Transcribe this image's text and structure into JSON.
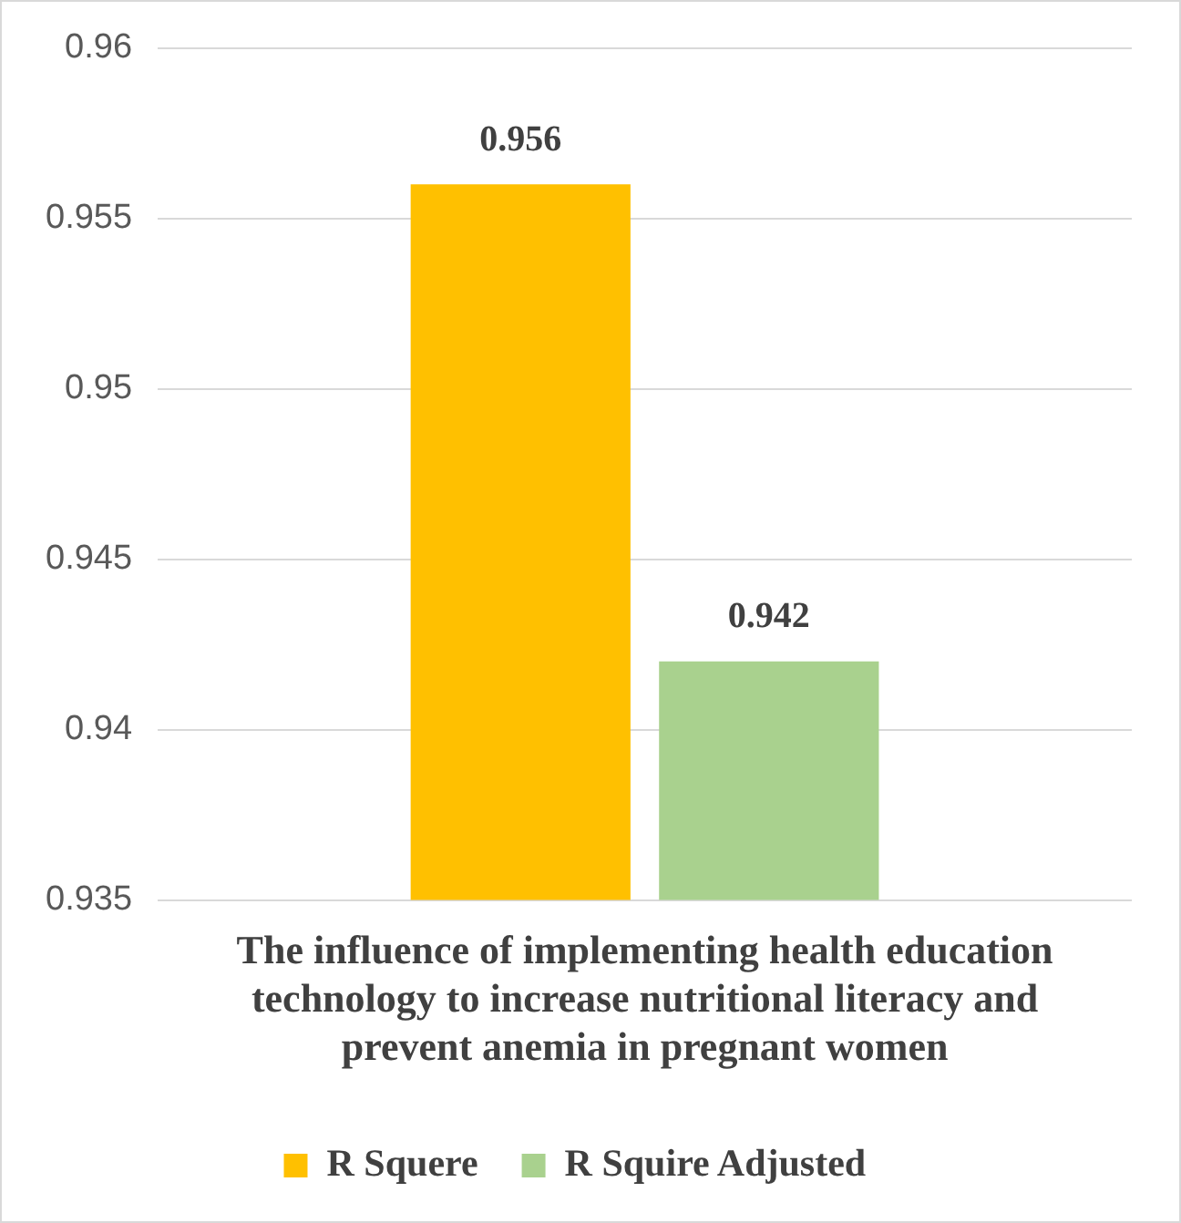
{
  "chart_data": {
    "type": "bar",
    "categories": [
      "The influence of implementing health education technology to increase nutritional literacy and prevent anemia in pregnant women"
    ],
    "series": [
      {
        "name": "R Squere",
        "color": "#ffc000",
        "values": [
          0.956
        ]
      },
      {
        "name": "R Squire Adjusted",
        "color": "#a9d18e",
        "values": [
          0.942
        ]
      }
    ],
    "ylim": [
      0.935,
      0.96
    ],
    "yticks": [
      0.935,
      0.94,
      0.945,
      0.95,
      0.955,
      0.96
    ],
    "grid": "y",
    "legend": "bottom",
    "data_labels": true
  }
}
